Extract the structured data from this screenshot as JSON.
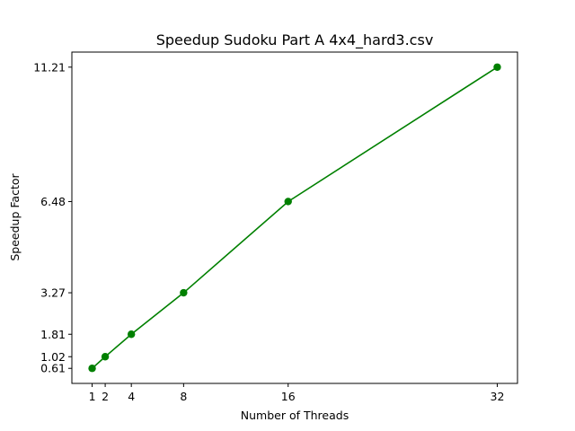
{
  "chart_data": {
    "type": "line",
    "title": "Speedup Sudoku Part A 4x4_hard3.csv",
    "xlabel": "Number of Threads",
    "ylabel": "Speedup Factor",
    "x": [
      1,
      2,
      4,
      8,
      16,
      32
    ],
    "xticks": [
      "1",
      "2",
      "4",
      "8",
      "16",
      "32"
    ],
    "yticks": [
      "0.61",
      "1.02",
      "1.81",
      "3.27",
      "6.48",
      "11.21"
    ],
    "series": [
      {
        "values": [
          0.61,
          1.02,
          1.81,
          3.27,
          6.48,
          11.21
        ],
        "color": "#008000",
        "marker": "circle"
      }
    ],
    "xlim": [
      -0.55,
      33.55
    ],
    "ylim": [
      0.08,
      11.74
    ],
    "grid": false,
    "legend": "none"
  }
}
